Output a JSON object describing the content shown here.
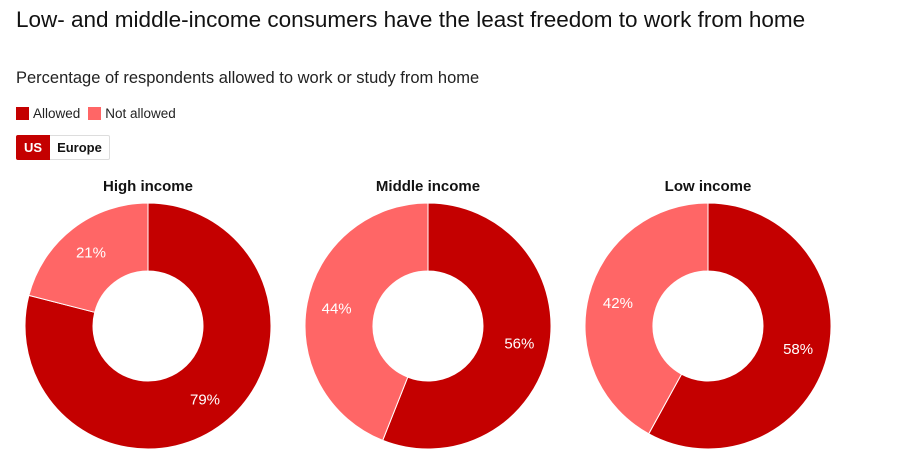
{
  "header": {
    "title": "Low- and middle-income consumers have the least freedom to work from home",
    "subtitle": "Percentage of respondents allowed to work or study from home"
  },
  "legend": {
    "items": [
      {
        "label": "Allowed",
        "color": "#c40000"
      },
      {
        "label": "Not allowed",
        "color": "#ff6666"
      }
    ]
  },
  "region_toggle": {
    "options": [
      "US",
      "Europe"
    ],
    "selected": "US",
    "active_color": "#c40000"
  },
  "charts": [
    {
      "title": "High income",
      "allowed": 79,
      "not_allowed": 21,
      "allowed_label": "79%",
      "not_allowed_label": "21%"
    },
    {
      "title": "Middle income",
      "allowed": 56,
      "not_allowed": 44,
      "allowed_label": "56%",
      "not_allowed_label": "44%"
    },
    {
      "title": "Low income",
      "allowed": 58,
      "not_allowed": 42,
      "allowed_label": "58%",
      "not_allowed_label": "42%"
    }
  ],
  "chart_data": {
    "type": "pie",
    "variant": "donut",
    "title": "Low- and middle-income consumers have the least freedom to work from home",
    "subtitle": "Percentage of respondents allowed to work or study from home",
    "region": "US",
    "legend": [
      "Allowed",
      "Not allowed"
    ],
    "legend_position": "top-left",
    "categories": [
      "High income",
      "Middle income",
      "Low income"
    ],
    "series": [
      {
        "name": "Allowed",
        "color": "#c40000",
        "values": [
          79,
          56,
          58
        ]
      },
      {
        "name": "Not allowed",
        "color": "#ff6666",
        "values": [
          21,
          44,
          42
        ]
      }
    ],
    "unit": "%"
  }
}
